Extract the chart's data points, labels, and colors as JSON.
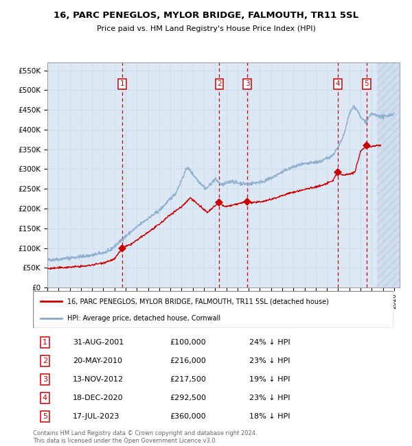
{
  "title": "16, PARC PENEGLOS, MYLOR BRIDGE, FALMOUTH, TR11 5SL",
  "subtitle": "Price paid vs. HM Land Registry's House Price Index (HPI)",
  "background_color": "#dce9f5",
  "plot_bg_color": "#dce9f5",
  "grid_color": "#ccddee",
  "hpi_line_color": "#88aacc",
  "price_line_color": "#cc0000",
  "marker_color": "#cc0000",
  "dashed_line_color": "#cc0000",
  "ylim": [
    0,
    570000
  ],
  "yticks": [
    0,
    50000,
    100000,
    150000,
    200000,
    250000,
    300000,
    350000,
    400000,
    450000,
    500000,
    550000
  ],
  "ytick_labels": [
    "£0",
    "£50K",
    "£100K",
    "£150K",
    "£200K",
    "£250K",
    "£300K",
    "£350K",
    "£400K",
    "£450K",
    "£500K",
    "£550K"
  ],
  "xlim_start": 1995.0,
  "xlim_end": 2026.5,
  "xtick_years": [
    1995,
    1996,
    1997,
    1998,
    1999,
    2000,
    2001,
    2002,
    2003,
    2004,
    2005,
    2006,
    2007,
    2008,
    2009,
    2010,
    2011,
    2012,
    2013,
    2014,
    2015,
    2016,
    2017,
    2018,
    2019,
    2020,
    2021,
    2022,
    2023,
    2024,
    2025,
    2026
  ],
  "hatch_start": 2024.5,
  "sales": [
    {
      "num": 1,
      "date": "31-AUG-2001",
      "year": 2001.67,
      "price": 100000,
      "label": "£100,000",
      "hpi_pct": "24% ↓ HPI"
    },
    {
      "num": 2,
      "date": "20-MAY-2010",
      "year": 2010.38,
      "price": 216000,
      "label": "£216,000",
      "hpi_pct": "23% ↓ HPI"
    },
    {
      "num": 3,
      "date": "13-NOV-2012",
      "year": 2012.87,
      "price": 217500,
      "label": "£217,500",
      "hpi_pct": "19% ↓ HPI"
    },
    {
      "num": 4,
      "date": "18-DEC-2020",
      "year": 2020.96,
      "price": 292500,
      "label": "£292,500",
      "hpi_pct": "23% ↓ HPI"
    },
    {
      "num": 5,
      "date": "17-JUL-2023",
      "year": 2023.54,
      "price": 360000,
      "label": "£360,000",
      "hpi_pct": "18% ↓ HPI"
    }
  ],
  "legend_line1": "16, PARC PENEGLOS, MYLOR BRIDGE, FALMOUTH, TR11 5SL (detached house)",
  "legend_line2": "HPI: Average price, detached house, Cornwall",
  "footer1": "Contains HM Land Registry data © Crown copyright and database right 2024.",
  "footer2": "This data is licensed under the Open Government Licence v3.0."
}
